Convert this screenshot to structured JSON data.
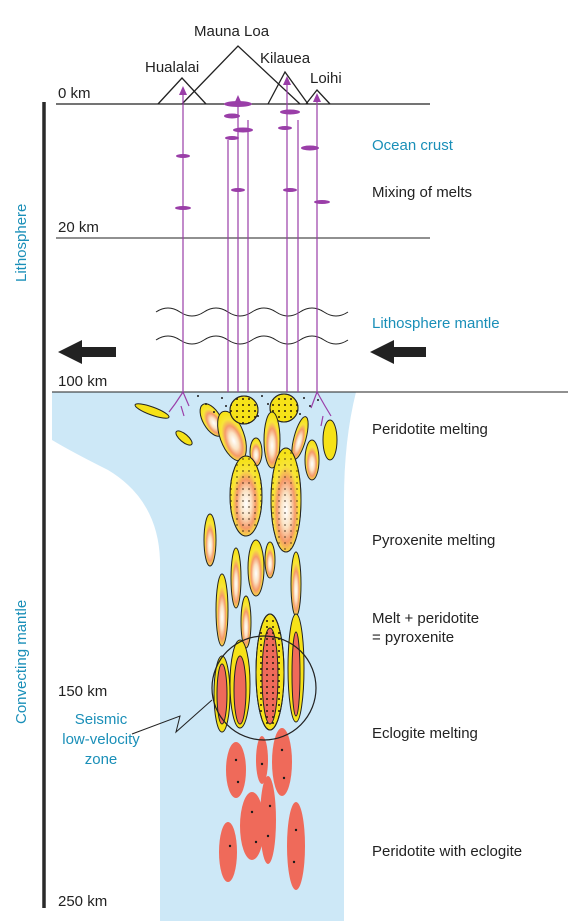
{
  "volcanoes": {
    "mauna_loa": "Mauna Loa",
    "hualalai": "Hualalai",
    "kilauea": "Kilauea",
    "loihi": "Loihi"
  },
  "depths": {
    "d0": "0 km",
    "d20": "20 km",
    "d100": "100 km",
    "d150": "150 km",
    "d250": "250 km"
  },
  "zones": {
    "lithosphere": "Lithosphere",
    "convecting_mantle": "Convecting mantle"
  },
  "layer_labels": {
    "ocean_crust": "Ocean crust",
    "mixing_of_melts": "Mixing of melts",
    "lithosphere_mantle": "Lithosphere mantle",
    "peridotite_melting": "Peridotite melting",
    "pyroxenite_melting": "Pyroxenite melting",
    "melt_peridotite_line1": "Melt + peridotite",
    "melt_peridotite_line2": "= pyroxenite",
    "eclogite_melting": "Eclogite melting",
    "peridotite_with_eclogite": "Peridotite with eclogite"
  },
  "seismic": {
    "line1": "Seismic",
    "line2": "low-velocity",
    "line3": "zone"
  },
  "colors": {
    "plume": "#cde8f7",
    "melt_yellow": "#f7e818",
    "eclogite": "#ef6a5a",
    "conduit": "#9a3ea8",
    "label_blue": "#1a8fb8"
  }
}
